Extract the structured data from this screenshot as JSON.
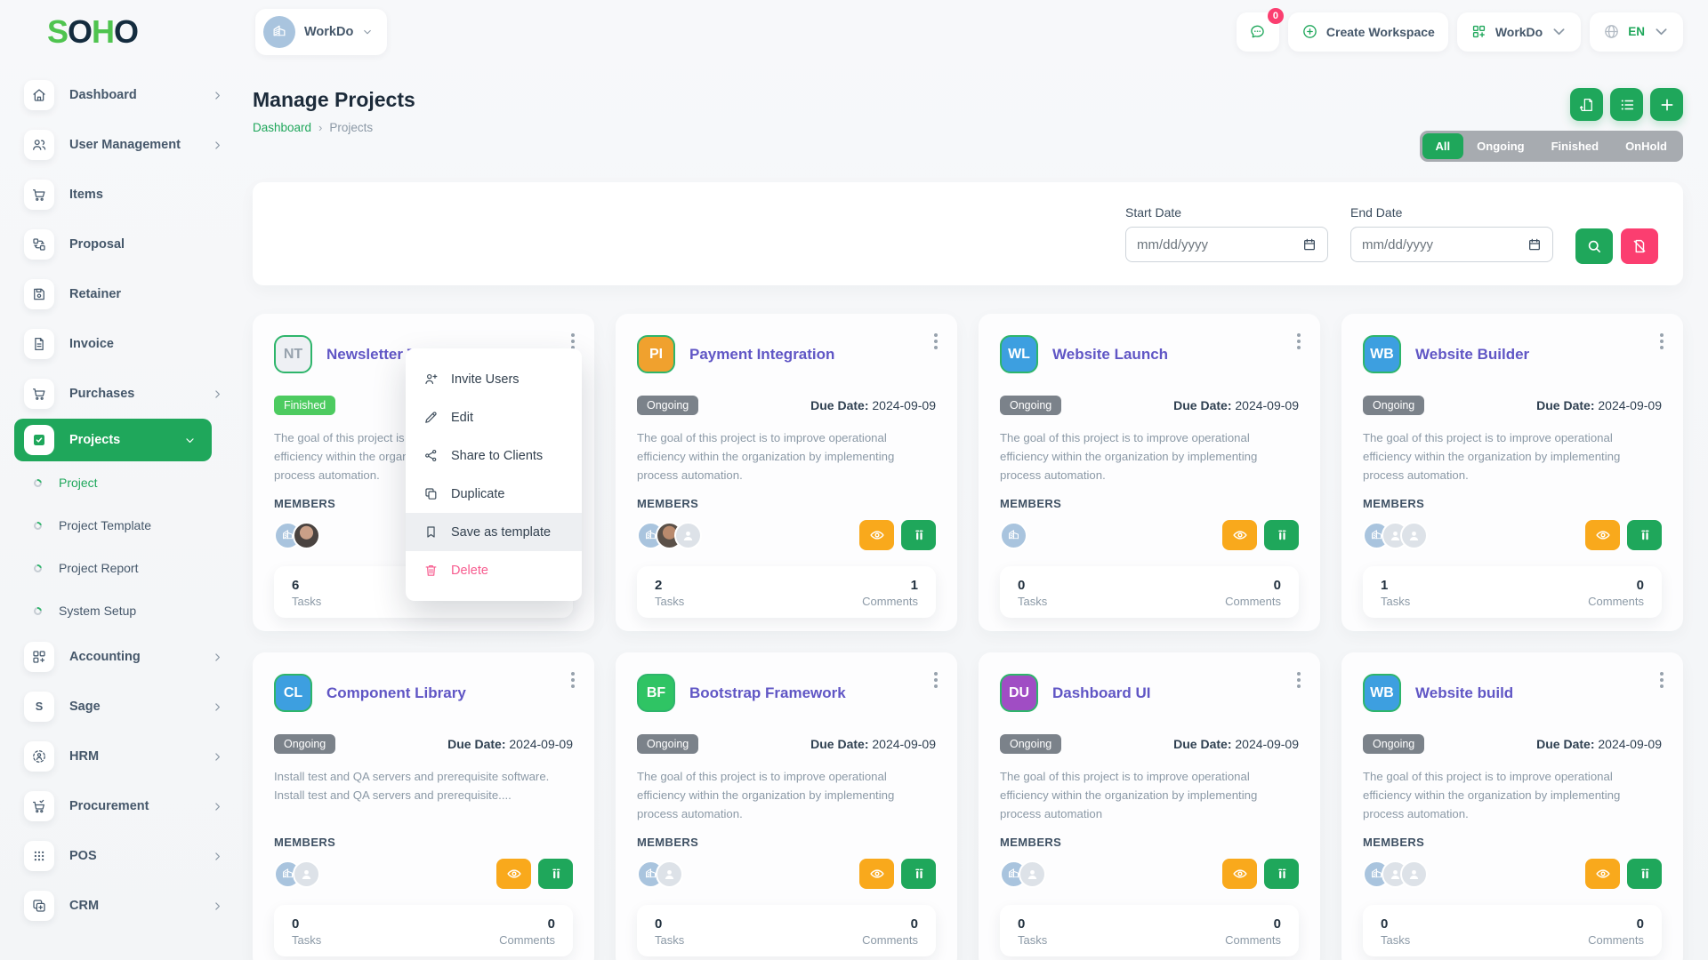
{
  "logo": {
    "letters": [
      {
        "char": "S",
        "color": "#4fc44f"
      },
      {
        "char": "O",
        "color": "#142c3e"
      },
      {
        "char": "H",
        "color": "#4fc44f"
      },
      {
        "char": "O",
        "color": "#142c3e"
      }
    ]
  },
  "header": {
    "workspace_label": "WorkDo",
    "messages_badge": "0",
    "create_workspace_label": "Create Workspace",
    "apps_button_label": "WorkDo",
    "language": "EN"
  },
  "sidebar": {
    "items": [
      {
        "label": "Dashboard",
        "icon": "home",
        "chevron": true
      },
      {
        "label": "User Management",
        "icon": "users",
        "chevron": true
      },
      {
        "label": "Items",
        "icon": "cart",
        "chevron": false
      },
      {
        "label": "Proposal",
        "icon": "proposal",
        "chevron": false
      },
      {
        "label": "Retainer",
        "icon": "retainer",
        "chevron": false
      },
      {
        "label": "Invoice",
        "icon": "invoice",
        "chevron": false
      },
      {
        "label": "Purchases",
        "icon": "cart",
        "chevron": true
      },
      {
        "label": "Projects",
        "icon": "projects",
        "chevron": true,
        "active": true,
        "children": [
          {
            "label": "Project",
            "active": true
          },
          {
            "label": "Project Template"
          },
          {
            "label": "Project Report"
          },
          {
            "label": "System Setup"
          }
        ]
      },
      {
        "label": "Accounting",
        "icon": "accounting",
        "chevron": true
      },
      {
        "label": "Sage",
        "icon": "sage",
        "chevron": true
      },
      {
        "label": "HRM",
        "icon": "hrm",
        "chevron": true
      },
      {
        "label": "Procurement",
        "icon": "procurement",
        "chevron": true
      },
      {
        "label": "POS",
        "icon": "pos",
        "chevron": true
      },
      {
        "label": "CRM",
        "icon": "crm",
        "chevron": true
      }
    ]
  },
  "page": {
    "title": "Manage Projects",
    "breadcrumb": [
      {
        "label": "Dashboard",
        "link": true
      },
      {
        "label": "Projects",
        "link": false
      }
    ],
    "tabs": [
      {
        "label": "All",
        "active": true
      },
      {
        "label": "Ongoing",
        "active": false
      },
      {
        "label": "Finished",
        "active": false
      },
      {
        "label": "OnHold",
        "active": false
      }
    ],
    "filter": {
      "start_label": "Start Date",
      "end_label": "End Date",
      "date_placeholder": "mm/dd/yyyy"
    }
  },
  "card_labels": {
    "members": "MEMBERS",
    "tasks": "Tasks",
    "comments": "Comments",
    "due": "Due Date:"
  },
  "context_menu": {
    "items": [
      {
        "label": "Invite Users",
        "icon": "user-plus",
        "highlighted": false,
        "danger": false
      },
      {
        "label": "Edit",
        "icon": "pencil",
        "highlighted": false,
        "danger": false
      },
      {
        "label": "Share to Clients",
        "icon": "share",
        "highlighted": false,
        "danger": false
      },
      {
        "label": "Duplicate",
        "icon": "copy",
        "highlighted": false,
        "danger": false
      },
      {
        "label": "Save as template",
        "icon": "bookmark",
        "highlighted": true,
        "danger": false
      },
      {
        "label": "Delete",
        "icon": "trash",
        "highlighted": false,
        "danger": true
      }
    ]
  },
  "cards": [
    {
      "initials": "NT",
      "avatar_bg": "#eef0f4",
      "avatar_color": "#97a2ad",
      "title": "Newsletter Templates",
      "badge": {
        "label": "Finished",
        "bg": "#4dcb60"
      },
      "due_value": "",
      "description": "The goal of this project is to improve operational efficiency within the organization by implementing process automation.",
      "members": [
        "workdo",
        "photo1"
      ],
      "tasks": "6",
      "comments": null,
      "show_actions": false,
      "menu_open": true
    },
    {
      "initials": "PI",
      "avatar_bg": "#f0a12e",
      "avatar_color": "#ffffff",
      "title": "Payment Integration",
      "badge": {
        "label": "Ongoing",
        "bg": "#7b828a"
      },
      "due_value": "2024-09-09",
      "description": "The goal of this project is to improve operational efficiency within the organization by implementing process automation.",
      "members": [
        "workdo",
        "photo2",
        "placeholder"
      ],
      "tasks": "2",
      "comments": "1",
      "show_actions": true,
      "menu_open": false
    },
    {
      "initials": "WL",
      "avatar_bg": "#3d9fe0",
      "avatar_color": "#ffffff",
      "title": "Website Launch",
      "badge": {
        "label": "Ongoing",
        "bg": "#7b828a"
      },
      "due_value": "2024-09-09",
      "description": "The goal of this project is to improve operational efficiency within the organization by implementing process automation.",
      "members": [
        "workdo"
      ],
      "tasks": "0",
      "comments": "0",
      "show_actions": true,
      "menu_open": false
    },
    {
      "initials": "WB",
      "avatar_bg": "#3d9fe0",
      "avatar_color": "#ffffff",
      "title": "Website Builder",
      "badge": {
        "label": "Ongoing",
        "bg": "#7b828a"
      },
      "due_value": "2024-09-09",
      "description": "The goal of this project is to improve operational efficiency within the organization by implementing process automation.",
      "members": [
        "workdo",
        "placeholder",
        "placeholder"
      ],
      "tasks": "1",
      "comments": "0",
      "show_actions": true,
      "menu_open": false
    },
    {
      "initials": "CL",
      "avatar_bg": "#3d9fe0",
      "avatar_color": "#ffffff",
      "title": "Component Library",
      "badge": {
        "label": "Ongoing",
        "bg": "#7b828a"
      },
      "due_value": "2024-09-09",
      "description": "Install test and QA servers and prerequisite software. Install test and QA servers and prerequisite....",
      "members": [
        "workdo",
        "placeholder"
      ],
      "tasks": "0",
      "comments": "0",
      "show_actions": true,
      "menu_open": false
    },
    {
      "initials": "BF",
      "avatar_bg": "#2fc464",
      "avatar_color": "#ffffff",
      "title": "Bootstrap Framework",
      "badge": {
        "label": "Ongoing",
        "bg": "#7b828a"
      },
      "due_value": "2024-09-09",
      "description": "The goal of this project is to improve operational efficiency within the organization by implementing process automation.",
      "members": [
        "workdo",
        "placeholder"
      ],
      "tasks": "0",
      "comments": "0",
      "show_actions": true,
      "menu_open": false
    },
    {
      "initials": "DU",
      "avatar_bg": "#a04dc4",
      "avatar_color": "#ffffff",
      "title": "Dashboard UI",
      "badge": {
        "label": "Ongoing",
        "bg": "#7b828a"
      },
      "due_value": "2024-09-09",
      "description": "The goal of this project is to improve operational efficiency within the organization by implementing process automation",
      "members": [
        "workdo",
        "placeholder"
      ],
      "tasks": "0",
      "comments": "0",
      "show_actions": true,
      "menu_open": false
    },
    {
      "initials": "WB",
      "avatar_bg": "#3d9fe0",
      "avatar_color": "#ffffff",
      "title": "Website build",
      "badge": {
        "label": "Ongoing",
        "bg": "#7b828a"
      },
      "due_value": "2024-09-09",
      "description": "The goal of this project is to improve operational efficiency within the organization by implementing process automation.",
      "members": [
        "workdo",
        "placeholder",
        "placeholder"
      ],
      "tasks": "0",
      "comments": "0",
      "show_actions": true,
      "menu_open": false
    }
  ],
  "colors": {
    "accent": "#1fa75b",
    "danger": "#fb3e70",
    "warning": "#f9a91c",
    "title_purple": "#6056c5"
  }
}
